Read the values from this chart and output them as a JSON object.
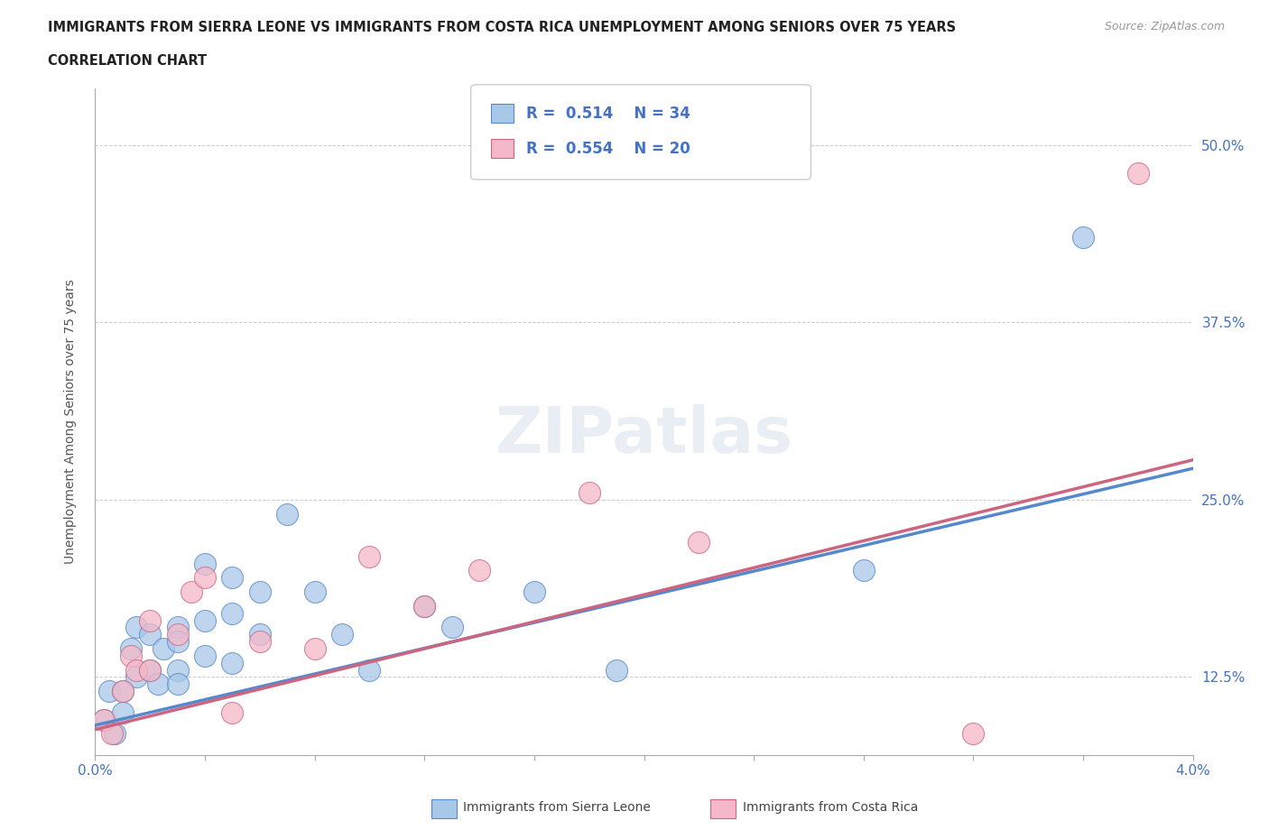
{
  "title_line1": "IMMIGRANTS FROM SIERRA LEONE VS IMMIGRANTS FROM COSTA RICA UNEMPLOYMENT AMONG SENIORS OVER 75 YEARS",
  "title_line2": "CORRELATION CHART",
  "source": "Source: ZipAtlas.com",
  "ylabel": "Unemployment Among Seniors over 75 years",
  "xlim": [
    0.0,
    0.04
  ],
  "ylim": [
    0.07,
    0.54
  ],
  "yticks": [
    0.125,
    0.25,
    0.375,
    0.5
  ],
  "ytick_labels": [
    "12.5%",
    "25.0%",
    "37.5%",
    "50.0%"
  ],
  "color_blue": "#a8c8e8",
  "color_pink": "#f4b8c8",
  "color_blue_line": "#5588cc",
  "color_pink_line": "#cc6680",
  "color_blue_dark": "#4472c4",
  "watermark": "ZIPatlas",
  "sl_trend_x0": 0.0,
  "sl_trend_y0": 0.091,
  "sl_trend_x1": 0.04,
  "sl_trend_y1": 0.272,
  "cr_trend_x0": 0.0,
  "cr_trend_y0": 0.088,
  "cr_trend_x1": 0.04,
  "cr_trend_y1": 0.278,
  "sierra_leone_x": [
    0.0003,
    0.0005,
    0.0007,
    0.001,
    0.001,
    0.0013,
    0.0015,
    0.0015,
    0.002,
    0.002,
    0.0023,
    0.0025,
    0.003,
    0.003,
    0.003,
    0.003,
    0.004,
    0.004,
    0.004,
    0.005,
    0.005,
    0.005,
    0.006,
    0.006,
    0.007,
    0.008,
    0.009,
    0.01,
    0.012,
    0.013,
    0.016,
    0.019,
    0.028,
    0.036
  ],
  "sierra_leone_y": [
    0.095,
    0.115,
    0.085,
    0.115,
    0.1,
    0.145,
    0.16,
    0.125,
    0.155,
    0.13,
    0.12,
    0.145,
    0.16,
    0.15,
    0.13,
    0.12,
    0.205,
    0.165,
    0.14,
    0.195,
    0.17,
    0.135,
    0.185,
    0.155,
    0.24,
    0.185,
    0.155,
    0.13,
    0.175,
    0.16,
    0.185,
    0.13,
    0.2,
    0.435
  ],
  "costa_rica_x": [
    0.0003,
    0.0006,
    0.001,
    0.0013,
    0.0015,
    0.002,
    0.002,
    0.003,
    0.0035,
    0.004,
    0.005,
    0.006,
    0.008,
    0.01,
    0.012,
    0.014,
    0.018,
    0.022,
    0.032,
    0.038
  ],
  "costa_rica_y": [
    0.095,
    0.085,
    0.115,
    0.14,
    0.13,
    0.165,
    0.13,
    0.155,
    0.185,
    0.195,
    0.1,
    0.15,
    0.145,
    0.21,
    0.175,
    0.2,
    0.255,
    0.22,
    0.085,
    0.48
  ]
}
